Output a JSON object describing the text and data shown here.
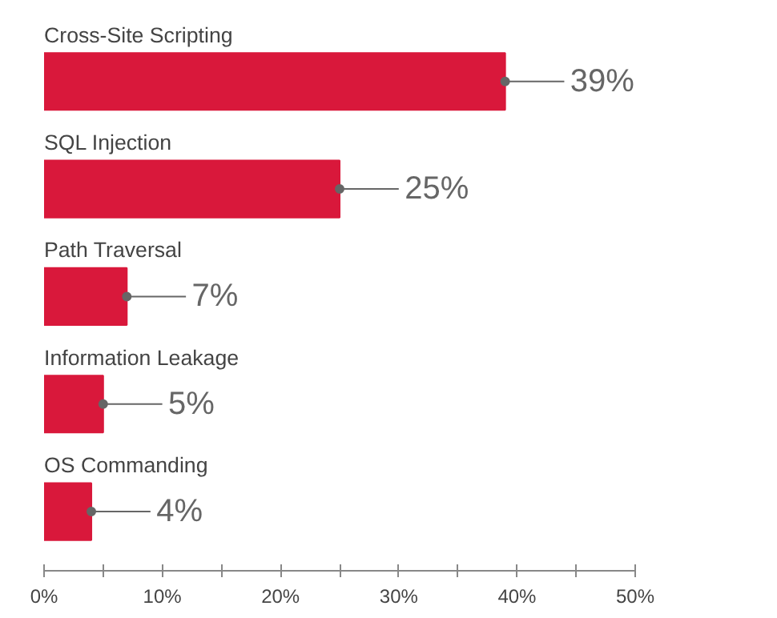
{
  "chart_data": {
    "type": "bar",
    "orientation": "horizontal",
    "categories": [
      "Cross-Site Scripting",
      "SQL Injection",
      "Path Traversal",
      "Information Leakage",
      "OS Commanding"
    ],
    "values": [
      39,
      25,
      7,
      5,
      4
    ],
    "value_labels": [
      "39%",
      "25%",
      "7%",
      "5%",
      "4%"
    ],
    "color": "#d9183b",
    "xlim": [
      0,
      50
    ],
    "xticks": [
      {
        "value": 0,
        "label": "0%"
      },
      {
        "value": 5,
        "label": null
      },
      {
        "value": 10,
        "label": "10%"
      },
      {
        "value": 15,
        "label": null
      },
      {
        "value": 20,
        "label": "20%"
      },
      {
        "value": 25,
        "label": null
      },
      {
        "value": 30,
        "label": "30%"
      },
      {
        "value": 35,
        "label": null
      },
      {
        "value": 40,
        "label": "40%"
      },
      {
        "value": 45,
        "label": null
      },
      {
        "value": 50,
        "label": "50%"
      }
    ]
  }
}
